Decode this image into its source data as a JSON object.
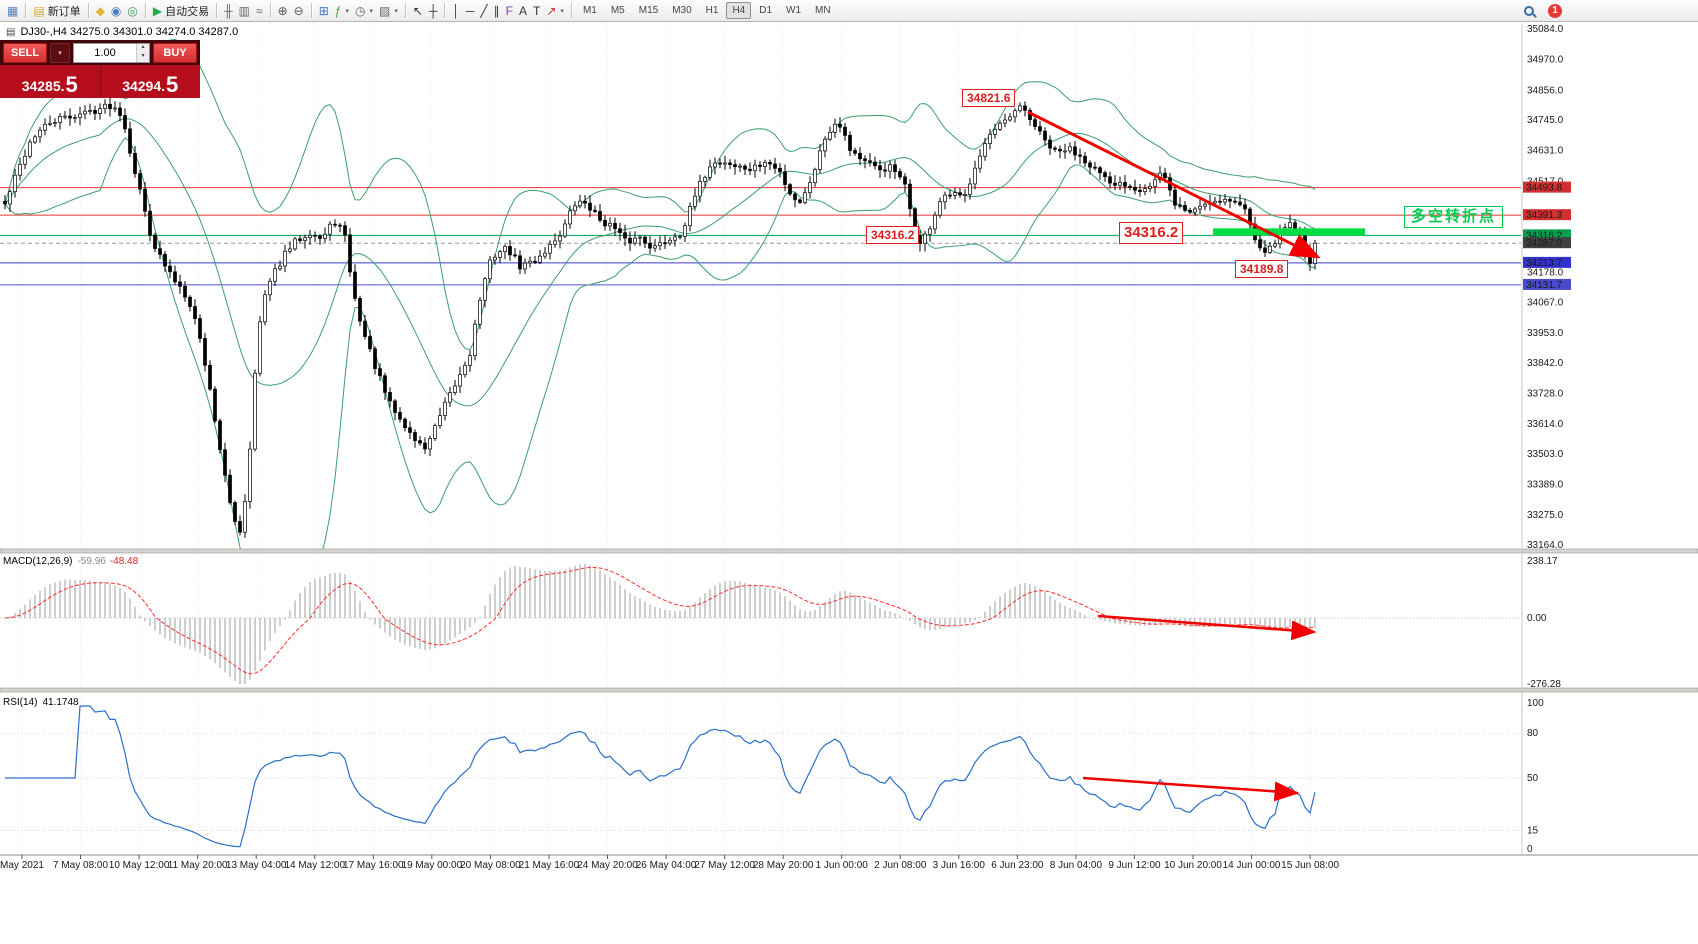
{
  "toolbar": {
    "badge": "1",
    "active_timeframe": "H4",
    "timeframes": [
      "M1",
      "M5",
      "M15",
      "M30",
      "H1",
      "H4",
      "D1",
      "W1",
      "MN"
    ],
    "groups": [
      {
        "items": [
          {
            "name": "charts-window-icon",
            "glyph": "▦",
            "color": "#5b82c0"
          }
        ]
      },
      {
        "items": [
          {
            "name": "new-order-button",
            "glyph": "▤",
            "color": "#d8a93d",
            "label": "新订单"
          }
        ]
      },
      {
        "items": [
          {
            "name": "market-watch-icon",
            "glyph": "◆",
            "color": "#e8b339"
          },
          {
            "name": "data-window-icon",
            "glyph": "◉",
            "color": "#4a79c4"
          },
          {
            "name": "navigator-icon",
            "glyph": "◎",
            "color": "#3f9e63"
          }
        ]
      },
      {
        "items": [
          {
            "name": "auto-trading-button",
            "glyph": "▶",
            "color": "#2fa84f",
            "label": "自动交易"
          }
        ]
      },
      {
        "items": [
          {
            "name": "bar-chart-icon",
            "glyph": "╫",
            "color": "#666666"
          },
          {
            "name": "candlestick-chart-icon",
            "glyph": "▥",
            "color": "#666666"
          },
          {
            "name": "line-chart-icon",
            "glyph": "≈",
            "color": "#666666"
          }
        ]
      },
      {
        "items": [
          {
            "name": "zoom-in-icon",
            "glyph": "⊕",
            "color": "#555555"
          },
          {
            "name": "zoom-out-icon",
            "glyph": "⊖",
            "color": "#555555"
          }
        ]
      },
      {
        "items": [
          {
            "name": "tile-windows-icon",
            "glyph": "⊞",
            "color": "#4a79c4"
          },
          {
            "name": "indicators-list-icon",
            "glyph": "ƒ",
            "color": "#2fa84f",
            "caret": true
          },
          {
            "name": "periods-icon",
            "glyph": "◷",
            "color": "#666666",
            "caret": true
          },
          {
            "name": "templates-icon",
            "glyph": "▨",
            "color": "#666666",
            "caret": true
          }
        ]
      },
      {
        "items": [
          {
            "name": "cursor-icon",
            "glyph": "↖",
            "color": "#333333"
          },
          {
            "name": "crosshair-icon",
            "glyph": "┼",
            "color": "#333333"
          }
        ]
      },
      {
        "items": [
          {
            "name": "vertical-line-icon",
            "glyph": "│",
            "color": "#333333"
          },
          {
            "name": "horizontal-line-icon",
            "glyph": "─",
            "color": "#333333"
          },
          {
            "name": "trendline-icon",
            "glyph": "╱",
            "color": "#333333"
          },
          {
            "name": "equidistant-channel-icon",
            "glyph": "∥",
            "color": "#333333"
          },
          {
            "name": "fibonacci-icon",
            "glyph": "F",
            "color": "#7a3fb5"
          },
          {
            "name": "andrews-pitchfork-icon",
            "glyph": "A",
            "color": "#333333"
          },
          {
            "name": "text-icon",
            "glyph": "T",
            "color": "#333333"
          },
          {
            "name": "arrows-icon",
            "glyph": "↗",
            "color": "#c03030",
            "caret": true
          }
        ]
      }
    ]
  },
  "icons": {
    "caret_up": "▴",
    "caret_down": "▾"
  },
  "chart": {
    "symbol_info": "DJ30-,H4 34275.0 34301.0 34274.0 34287.0",
    "symbol_icon": "▤"
  },
  "trade_panel": {
    "sell_label": "SELL",
    "buy_label": "BUY",
    "volume": "1.00",
    "sell_price_main": "34285.",
    "sell_price_big": "5",
    "buy_price_main": "34294.",
    "buy_price_big": "5"
  },
  "annotations": {
    "peak_price": "34821.6",
    "mid_price": "34316.2",
    "big_price": "34316.2",
    "low_price": "34189.8",
    "turning_point_text": "多空转折点"
  },
  "indicators": {
    "macd": {
      "name": "MACD(12,26,9)",
      "value_main": "-59.96",
      "value_signal": "-48.48",
      "axis_labels": [
        "238.17",
        "0.00",
        "-276.28"
      ]
    },
    "rsi": {
      "name": "RSI(14)",
      "value": "41.1748",
      "axis_values": [
        100,
        80,
        50,
        15,
        0
      ]
    }
  },
  "chart_data": {
    "type": "candlestick",
    "symbol": "DJ30-",
    "timeframe": "H4",
    "ohlc_current": {
      "open": 34275.0,
      "high": 34301.0,
      "low": 34274.0,
      "close": 34287.0
    },
    "bollinger": "BB(20,2)",
    "band_color": "#3aa06a",
    "arrow_color": "#f00000",
    "zone_price": 34316.2,
    "zone_color": "#00dd42",
    "price_axis": {
      "min": 33164.0,
      "max": 35084.0,
      "ticks": [
        35084.0,
        34970.0,
        34856.0,
        34745.0,
        34631.0,
        34517.0,
        34178.0,
        34067.0,
        33953.0,
        33842.0,
        33728.0,
        33614.0,
        33503.0,
        33389.0,
        33275.0,
        33164.0
      ],
      "tags": [
        {
          "label": "34493.8",
          "price": 34493.8,
          "bg": "#d23030"
        },
        {
          "label": "34391.3",
          "price": 34391.3,
          "bg": "#d23030"
        },
        {
          "label": "34316.2",
          "price": 34316.2,
          "bg": "#00a050"
        },
        {
          "label": "34287.0",
          "price": 34287.0,
          "bg": "#404040"
        },
        {
          "label": "34213.7",
          "price": 34213.7,
          "bg": "#3333cc"
        },
        {
          "label": "34131.7",
          "price": 34131.7,
          "bg": "#4a4ad0"
        }
      ]
    },
    "levels": [
      {
        "price": 34493.8,
        "color": "#e03535",
        "style": "solid"
      },
      {
        "price": 34391.3,
        "color": "#e03535",
        "style": "solid"
      },
      {
        "price": 34316.2,
        "color": "#00a050",
        "style": "solid"
      },
      {
        "price": 34287.0,
        "color": "#9a9a9a",
        "style": "dashed"
      },
      {
        "price": 34213.7,
        "color": "#3a3ad0",
        "style": "solid"
      },
      {
        "price": 34131.7,
        "color": "#5050dd",
        "style": "solid"
      }
    ],
    "anchors": [
      [
        0,
        34400
      ],
      [
        15,
        34550
      ],
      [
        30,
        34680
      ],
      [
        50,
        34740
      ],
      [
        70,
        34760
      ],
      [
        90,
        34780
      ],
      [
        108,
        34800
      ],
      [
        120,
        34770
      ],
      [
        130,
        34600
      ],
      [
        140,
        34450
      ],
      [
        150,
        34300
      ],
      [
        160,
        34220
      ],
      [
        170,
        34160
      ],
      [
        180,
        34120
      ],
      [
        190,
        34050
      ],
      [
        200,
        33900
      ],
      [
        210,
        33700
      ],
      [
        220,
        33480
      ],
      [
        230,
        33270
      ],
      [
        238,
        33220
      ],
      [
        246,
        33400
      ],
      [
        252,
        33780
      ],
      [
        260,
        34060
      ],
      [
        270,
        34160
      ],
      [
        282,
        34240
      ],
      [
        295,
        34300
      ],
      [
        308,
        34330
      ],
      [
        320,
        34300
      ],
      [
        332,
        34370
      ],
      [
        342,
        34330
      ],
      [
        352,
        34090
      ],
      [
        362,
        33950
      ],
      [
        374,
        33820
      ],
      [
        386,
        33700
      ],
      [
        398,
        33630
      ],
      [
        410,
        33570
      ],
      [
        422,
        33520
      ],
      [
        432,
        33590
      ],
      [
        444,
        33690
      ],
      [
        456,
        33780
      ],
      [
        468,
        33880
      ],
      [
        478,
        34080
      ],
      [
        490,
        34240
      ],
      [
        505,
        34270
      ],
      [
        518,
        34200
      ],
      [
        532,
        34220
      ],
      [
        546,
        34270
      ],
      [
        560,
        34330
      ],
      [
        572,
        34430
      ],
      [
        584,
        34440
      ],
      [
        596,
        34380
      ],
      [
        610,
        34350
      ],
      [
        624,
        34290
      ],
      [
        638,
        34310
      ],
      [
        652,
        34270
      ],
      [
        666,
        34300
      ],
      [
        680,
        34330
      ],
      [
        695,
        34480
      ],
      [
        708,
        34580
      ],
      [
        722,
        34590
      ],
      [
        736,
        34570
      ],
      [
        750,
        34560
      ],
      [
        764,
        34590
      ],
      [
        778,
        34550
      ],
      [
        790,
        34460
      ],
      [
        800,
        34440
      ],
      [
        812,
        34560
      ],
      [
        824,
        34690
      ],
      [
        836,
        34750
      ],
      [
        848,
        34640
      ],
      [
        862,
        34590
      ],
      [
        876,
        34560
      ],
      [
        890,
        34570
      ],
      [
        904,
        34490
      ],
      [
        916,
        34270
      ],
      [
        926,
        34330
      ],
      [
        938,
        34440
      ],
      [
        950,
        34470
      ],
      [
        962,
        34450
      ],
      [
        974,
        34590
      ],
      [
        986,
        34680
      ],
      [
        998,
        34720
      ],
      [
        1010,
        34760
      ],
      [
        1020,
        34795
      ],
      [
        1030,
        34740
      ],
      [
        1042,
        34670
      ],
      [
        1054,
        34620
      ],
      [
        1066,
        34640
      ],
      [
        1080,
        34610
      ],
      [
        1094,
        34560
      ],
      [
        1108,
        34500
      ],
      [
        1122,
        34510
      ],
      [
        1136,
        34490
      ],
      [
        1148,
        34500
      ],
      [
        1160,
        34550
      ],
      [
        1172,
        34440
      ],
      [
        1186,
        34400
      ],
      [
        1200,
        34430
      ],
      [
        1214,
        34450
      ],
      [
        1228,
        34450
      ],
      [
        1242,
        34420
      ],
      [
        1254,
        34300
      ],
      [
        1266,
        34250
      ],
      [
        1278,
        34330
      ],
      [
        1290,
        34370
      ],
      [
        1300,
        34300
      ],
      [
        1308,
        34215
      ],
      [
        1313,
        34287
      ]
    ],
    "time_labels": [
      "May 2021",
      "7 May 08:00",
      "10 May 12:00",
      "11 May 20:00",
      "13 May 04:00",
      "14 May 12:00",
      "17 May 16:00",
      "19 May 00:00",
      "20 May 08:00",
      "21 May 16:00",
      "24 May 20:00",
      "26 May 04:00",
      "27 May 12:00",
      "28 May 20:00",
      "1 Jun 00:00",
      "2 Jun 08:00",
      "3 Jun 16:00",
      "6 Jun 23:00",
      "8 Jun 04:00",
      "9 Jun 12:00",
      "10 Jun 20:00",
      "14 Jun 00:00",
      "15 Jun 08:00"
    ]
  }
}
